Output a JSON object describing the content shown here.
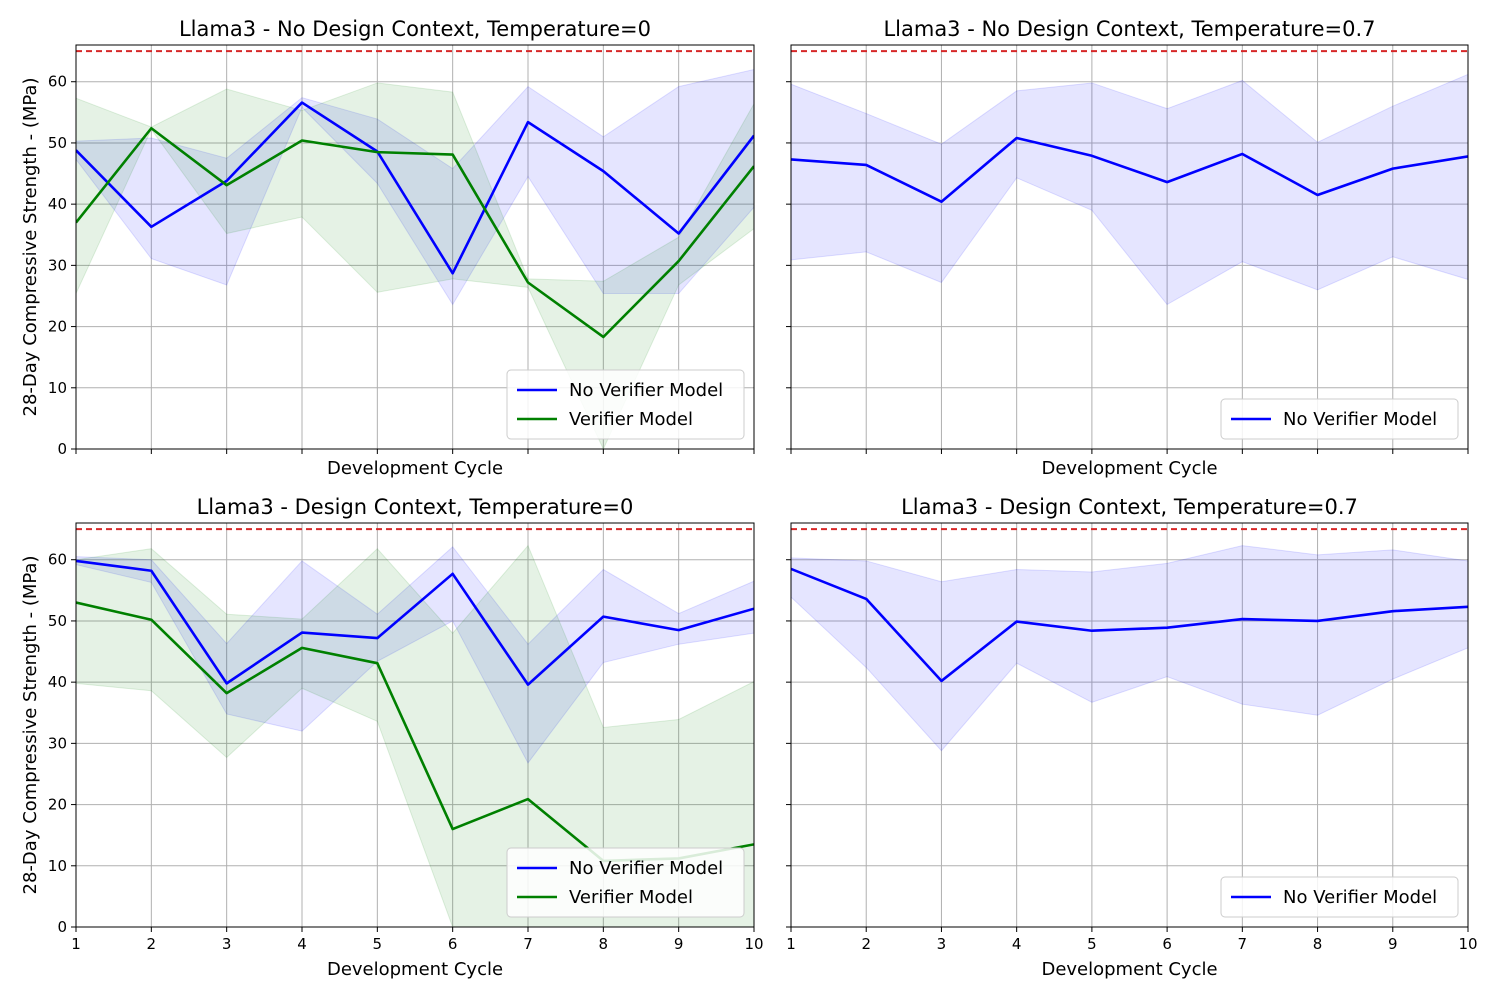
{
  "figure": {
    "ylabel": "28-Day Compressive Strength - (MPa)",
    "xlabel": "Development Cycle",
    "target_line_color": "#d62728"
  },
  "chart_data": [
    {
      "type": "line",
      "title": "Llama3 -  No Design Context, Temperature=0",
      "xlabel": "Development Cycle",
      "ylabel": "28-Day Compressive Strength - (MPa)",
      "x": [
        1,
        2,
        3,
        4,
        5,
        6,
        7,
        8,
        9,
        10
      ],
      "xlim": [
        1,
        10
      ],
      "ylim": [
        0,
        66
      ],
      "yticks": [
        0,
        10,
        20,
        30,
        40,
        50,
        60
      ],
      "grid": true,
      "legend_position": "lower-right",
      "reference_line": {
        "y": 65,
        "style": "dashed",
        "color": "#d62728"
      },
      "series": [
        {
          "name": "No Verifier Model",
          "color": "#0000ff",
          "values": [
            48.8,
            36.3,
            43.8,
            56.6,
            48.6,
            28.7,
            53.4,
            45.4,
            35.2,
            51.2
          ],
          "band_upper": [
            50.3,
            50.8,
            47.5,
            57.4,
            53.9,
            45.8,
            59.2,
            51.0,
            59.2,
            62.0
          ],
          "band_lower": [
            47.3,
            31.1,
            26.8,
            55.8,
            43.4,
            23.6,
            44.5,
            25.4,
            25.4,
            39.5
          ]
        },
        {
          "name": "Verifier Model",
          "color": "#008000",
          "values": [
            37.0,
            52.4,
            43.1,
            50.4,
            48.5,
            48.1,
            27.2,
            18.3,
            30.7,
            46.2
          ],
          "band_upper": [
            57.3,
            52.6,
            58.8,
            55.3,
            59.8,
            58.3,
            27.8,
            27.4,
            34.6,
            56.4
          ],
          "band_lower": [
            25.4,
            52.2,
            35.2,
            37.9,
            25.6,
            27.8,
            26.4,
            0,
            26.8,
            36.0
          ]
        }
      ]
    },
    {
      "type": "line",
      "title": "Llama3 -  No Design Context, Temperature=0.7",
      "xlabel": "Development Cycle",
      "ylabel": "",
      "x": [
        1,
        2,
        3,
        4,
        5,
        6,
        7,
        8,
        9,
        10
      ],
      "xlim": [
        1,
        10
      ],
      "ylim": [
        0,
        66
      ],
      "yticks": [
        0,
        10,
        20,
        30,
        40,
        50,
        60
      ],
      "grid": true,
      "legend_position": "lower-right",
      "reference_line": {
        "y": 65,
        "style": "dashed",
        "color": "#d62728"
      },
      "series": [
        {
          "name": "No Verifier Model",
          "color": "#0000ff",
          "values": [
            47.3,
            46.4,
            40.4,
            50.8,
            47.9,
            43.6,
            48.2,
            41.5,
            45.8,
            47.8
          ],
          "band_upper": [
            59.6,
            54.8,
            49.8,
            58.5,
            59.8,
            55.6,
            60.2,
            50.1,
            56.0,
            61.2
          ],
          "band_lower": [
            30.9,
            32.2,
            27.2,
            44.3,
            39.0,
            23.6,
            30.6,
            26.0,
            31.4,
            27.7
          ]
        }
      ]
    },
    {
      "type": "line",
      "title": "Llama3 -  Design Context, Temperature=0",
      "xlabel": "Development Cycle",
      "ylabel": "28-Day Compressive Strength - (MPa)",
      "x": [
        1,
        2,
        3,
        4,
        5,
        6,
        7,
        8,
        9,
        10
      ],
      "xlim": [
        1,
        10
      ],
      "ylim": [
        0,
        66
      ],
      "yticks": [
        0,
        10,
        20,
        30,
        40,
        50,
        60
      ],
      "grid": true,
      "legend_position": "lower-right",
      "reference_line": {
        "y": 65,
        "style": "dashed",
        "color": "#d62728"
      },
      "series": [
        {
          "name": "No Verifier Model",
          "color": "#0000ff",
          "values": [
            59.8,
            58.2,
            39.8,
            48.1,
            47.2,
            57.7,
            39.6,
            50.7,
            48.5,
            52.0
          ],
          "band_upper": [
            60.5,
            60.0,
            46.3,
            59.8,
            51.1,
            62.1,
            46.2,
            58.4,
            51.2,
            56.5
          ],
          "band_lower": [
            59.2,
            56.3,
            34.8,
            32.0,
            43.4,
            50.0,
            26.8,
            43.2,
            46.2,
            48.0
          ]
        },
        {
          "name": "Verifier Model",
          "color": "#008000",
          "values": [
            53.0,
            50.2,
            38.2,
            45.6,
            43.1,
            16.0,
            20.9,
            10.8,
            11.2,
            13.5
          ],
          "band_upper": [
            60.0,
            61.8,
            51.1,
            50.3,
            61.8,
            48.0,
            62.3,
            32.6,
            33.9,
            40.1
          ],
          "band_lower": [
            39.8,
            38.6,
            27.7,
            39.0,
            33.6,
            0,
            0,
            0,
            0,
            0
          ]
        }
      ]
    },
    {
      "type": "line",
      "title": "Llama3 -  Design Context, Temperature=0.7",
      "xlabel": "Development Cycle",
      "ylabel": "",
      "x": [
        1,
        2,
        3,
        4,
        5,
        6,
        7,
        8,
        9,
        10
      ],
      "xlim": [
        1,
        10
      ],
      "ylim": [
        0,
        66
      ],
      "yticks": [
        0,
        10,
        20,
        30,
        40,
        50,
        60
      ],
      "grid": true,
      "legend_position": "lower-right",
      "reference_line": {
        "y": 65,
        "style": "dashed",
        "color": "#d62728"
      },
      "series": [
        {
          "name": "No Verifier Model",
          "color": "#0000ff",
          "values": [
            58.5,
            53.6,
            40.2,
            49.9,
            48.4,
            48.9,
            50.3,
            50.0,
            51.6,
            52.3
          ],
          "band_upper": [
            60.3,
            59.8,
            56.4,
            58.4,
            58.0,
            59.4,
            62.3,
            60.8,
            61.6,
            59.8
          ],
          "band_lower": [
            53.9,
            42.4,
            28.8,
            43.1,
            36.7,
            40.9,
            36.4,
            34.6,
            40.5,
            45.6
          ]
        }
      ]
    }
  ]
}
